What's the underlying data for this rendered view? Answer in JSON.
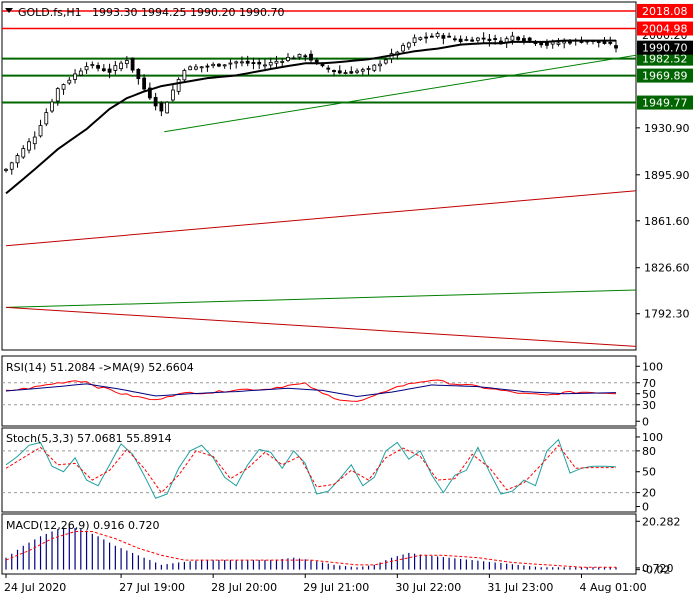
{
  "header": {
    "symbol": "GOLD.fs,H1",
    "ohlc": "1993.30 1994.25 1990.20 1990.70",
    "menu_icon": "triangle-down-icon"
  },
  "colors": {
    "up": "#00aa00",
    "down": "#cc0000",
    "ma": "#000000",
    "level_red": "#ff0000",
    "level_green": "#006600",
    "trend_green": "#008000",
    "trend_red": "#c00000",
    "label_red": "#ff0000",
    "label_green": "#006400",
    "label_black": "#000000",
    "osc_main": "#000080",
    "osc_signal": "#ff0000",
    "macd_hist": "#000080"
  },
  "chart_data": [
    {
      "type": "candlestick",
      "title": "GOLD.fs,H1",
      "ylim": [
        1766.0,
        2024.0
      ],
      "price_ticks": [
        "1930.90",
        "1895.90",
        "1861.60",
        "1826.60",
        "1792.30"
      ],
      "price_tick_values": [
        1930.9,
        1895.9,
        1861.6,
        1826.6,
        1792.3
      ],
      "current_price": "1990.70",
      "current_price_value": 1990.7,
      "hidden_tick": "2000.20",
      "hidden_tick_value": 2000.2,
      "levels": [
        {
          "value": 2018.08,
          "label": "2018.08",
          "kind": "red"
        },
        {
          "value": 2004.98,
          "label": "2004.98",
          "kind": "red"
        },
        {
          "value": 1982.52,
          "label": "1982.52",
          "kind": "green"
        },
        {
          "value": 1969.89,
          "label": "1969.89",
          "kind": "green"
        },
        {
          "value": 1949.77,
          "label": "1949.77",
          "kind": "green"
        }
      ],
      "trendlines": [
        {
          "kind": "green",
          "x0": 27.5,
          "y0": 1928.0,
          "x1": 107.0,
          "y1": 1985.0
        },
        {
          "kind": "red",
          "x0": 0.0,
          "y0": 1843.0,
          "x1": 107.0,
          "y1": 1884.0
        },
        {
          "kind": "green",
          "x0": 0.0,
          "y0": 1797.0,
          "x1": 107.0,
          "y1": 1810.0
        },
        {
          "kind": "red",
          "x0": 0.0,
          "y0": 1797.0,
          "x1": 107.0,
          "y1": 1768.0
        }
      ],
      "close_anchors": [
        [
          0,
          1900
        ],
        [
          5,
          1925
        ],
        [
          9,
          1960
        ],
        [
          14,
          1978
        ],
        [
          18,
          1973
        ],
        [
          21,
          1982
        ],
        [
          24,
          1960
        ],
        [
          27,
          1943
        ],
        [
          31,
          1975
        ],
        [
          35,
          1977
        ],
        [
          40,
          1980
        ],
        [
          45,
          1978
        ],
        [
          49,
          1983
        ],
        [
          52,
          1985
        ],
        [
          55,
          1976
        ],
        [
          58,
          1972
        ],
        [
          63,
          1974
        ],
        [
          67,
          1985
        ],
        [
          71,
          1997
        ],
        [
          75,
          2000
        ],
        [
          79,
          1996
        ],
        [
          83,
          1998
        ],
        [
          86,
          1995
        ],
        [
          88,
          1999
        ],
        [
          91,
          1996
        ],
        [
          94,
          1993
        ],
        [
          97,
          1995
        ],
        [
          101,
          1996
        ],
        [
          104,
          1994
        ],
        [
          106,
          1991
        ]
      ],
      "ma_anchors": [
        [
          0,
          1882
        ],
        [
          5,
          1900
        ],
        [
          9,
          1915
        ],
        [
          14,
          1930
        ],
        [
          18,
          1945
        ],
        [
          21,
          1953
        ],
        [
          24,
          1958
        ],
        [
          27,
          1962
        ],
        [
          31,
          1965
        ],
        [
          35,
          1968
        ],
        [
          40,
          1970
        ],
        [
          45,
          1974
        ],
        [
          49,
          1977
        ],
        [
          52,
          1979
        ],
        [
          55,
          1979
        ],
        [
          58,
          1980
        ],
        [
          63,
          1982
        ],
        [
          67,
          1985
        ],
        [
          71,
          1988
        ],
        [
          75,
          1990
        ],
        [
          79,
          1993
        ],
        [
          83,
          1994
        ],
        [
          86,
          1994
        ],
        [
          88,
          1995
        ],
        [
          91,
          1995
        ],
        [
          94,
          1995
        ],
        [
          97,
          1996
        ],
        [
          101,
          1996
        ],
        [
          104,
          1996
        ],
        [
          106,
          1996
        ]
      ],
      "x_labels": [
        "24 Jul 2020",
        "27 Jul 19:00",
        "28 Jul 20:00",
        "29 Jul 21:00",
        "30 Jul 22:00",
        "31 Jul 23:00",
        "4 Aug 01:00"
      ],
      "x_label_index": [
        0,
        20,
        36,
        52,
        68,
        84,
        100
      ]
    },
    {
      "type": "line",
      "title": "RSI(14) 51.2084  ->MA(9) 52.6604",
      "ylim": [
        -5,
        115
      ],
      "ticks": [
        "100",
        "70",
        "50",
        "30",
        "0"
      ],
      "tick_values": [
        100,
        70,
        50,
        30,
        0
      ],
      "dashed_levels": [
        70,
        30
      ],
      "main_anchors": [
        [
          0,
          55
        ],
        [
          4,
          60
        ],
        [
          8,
          68
        ],
        [
          12,
          74
        ],
        [
          14,
          72
        ],
        [
          16,
          62
        ],
        [
          18,
          58
        ],
        [
          20,
          50
        ],
        [
          24,
          42
        ],
        [
          26,
          38
        ],
        [
          28,
          46
        ],
        [
          32,
          52
        ],
        [
          36,
          52
        ],
        [
          40,
          58
        ],
        [
          45,
          58
        ],
        [
          49,
          65
        ],
        [
          52,
          68
        ],
        [
          55,
          50
        ],
        [
          58,
          40
        ],
        [
          61,
          35
        ],
        [
          64,
          45
        ],
        [
          67,
          60
        ],
        [
          71,
          70
        ],
        [
          74,
          75
        ],
        [
          78,
          68
        ],
        [
          82,
          63
        ],
        [
          86,
          56
        ],
        [
          90,
          50
        ],
        [
          94,
          47
        ],
        [
          97,
          52
        ],
        [
          101,
          53
        ],
        [
          106,
          51
        ]
      ],
      "signal_anchors": [
        [
          0,
          55
        ],
        [
          8,
          62
        ],
        [
          14,
          68
        ],
        [
          20,
          58
        ],
        [
          26,
          46
        ],
        [
          32,
          50
        ],
        [
          40,
          54
        ],
        [
          49,
          60
        ],
        [
          55,
          56
        ],
        [
          61,
          45
        ],
        [
          67,
          53
        ],
        [
          74,
          66
        ],
        [
          82,
          63
        ],
        [
          90,
          54
        ],
        [
          97,
          50
        ],
        [
          106,
          52
        ]
      ]
    },
    {
      "type": "line",
      "title": "Stoch(5,3,3) 57.0681 55.8914",
      "ylim": [
        -5,
        110
      ],
      "ticks": [
        "100",
        "80",
        "50",
        "20",
        "0"
      ],
      "tick_values": [
        100,
        80,
        50,
        20,
        0
      ],
      "dashed_levels": [
        80,
        20
      ],
      "main_anchors": [
        [
          0,
          60
        ],
        [
          2,
          72
        ],
        [
          4,
          88
        ],
        [
          6,
          92
        ],
        [
          8,
          58
        ],
        [
          10,
          50
        ],
        [
          12,
          70
        ],
        [
          14,
          38
        ],
        [
          16,
          30
        ],
        [
          18,
          60
        ],
        [
          20,
          90
        ],
        [
          22,
          75
        ],
        [
          24,
          45
        ],
        [
          26,
          12
        ],
        [
          28,
          18
        ],
        [
          30,
          55
        ],
        [
          32,
          80
        ],
        [
          34,
          88
        ],
        [
          36,
          70
        ],
        [
          38,
          42
        ],
        [
          40,
          30
        ],
        [
          42,
          60
        ],
        [
          44,
          82
        ],
        [
          46,
          78
        ],
        [
          48,
          55
        ],
        [
          50,
          80
        ],
        [
          52,
          62
        ],
        [
          54,
          18
        ],
        [
          56,
          22
        ],
        [
          58,
          40
        ],
        [
          60,
          60
        ],
        [
          62,
          30
        ],
        [
          64,
          42
        ],
        [
          66,
          80
        ],
        [
          68,
          92
        ],
        [
          70,
          68
        ],
        [
          72,
          80
        ],
        [
          74,
          45
        ],
        [
          76,
          20
        ],
        [
          78,
          45
        ],
        [
          80,
          52
        ],
        [
          82,
          85
        ],
        [
          84,
          50
        ],
        [
          86,
          18
        ],
        [
          88,
          22
        ],
        [
          90,
          38
        ],
        [
          92,
          30
        ],
        [
          94,
          80
        ],
        [
          96,
          96
        ],
        [
          98,
          48
        ],
        [
          100,
          55
        ],
        [
          102,
          58
        ],
        [
          104,
          58
        ],
        [
          106,
          57
        ]
      ],
      "signal_anchors": [
        [
          0,
          55
        ],
        [
          3,
          70
        ],
        [
          6,
          85
        ],
        [
          9,
          60
        ],
        [
          12,
          62
        ],
        [
          15,
          38
        ],
        [
          18,
          52
        ],
        [
          21,
          82
        ],
        [
          24,
          55
        ],
        [
          27,
          20
        ],
        [
          30,
          45
        ],
        [
          33,
          80
        ],
        [
          36,
          72
        ],
        [
          39,
          40
        ],
        [
          42,
          55
        ],
        [
          45,
          78
        ],
        [
          48,
          60
        ],
        [
          51,
          72
        ],
        [
          54,
          28
        ],
        [
          57,
          32
        ],
        [
          60,
          52
        ],
        [
          63,
          38
        ],
        [
          66,
          70
        ],
        [
          69,
          84
        ],
        [
          72,
          72
        ],
        [
          75,
          38
        ],
        [
          78,
          40
        ],
        [
          81,
          75
        ],
        [
          84,
          56
        ],
        [
          87,
          24
        ],
        [
          90,
          34
        ],
        [
          93,
          60
        ],
        [
          96,
          88
        ],
        [
          99,
          55
        ],
        [
          102,
          56
        ],
        [
          106,
          56
        ]
      ]
    },
    {
      "type": "bar",
      "title": "MACD(12,26,9) 0.916 0.720",
      "ylim": [
        -1.0,
        22.5
      ],
      "ticks": [
        "20.282",
        "0.720",
        "-0.02"
      ],
      "tick_values": [
        20.282,
        0.72,
        -0.02
      ],
      "hist_anchors": [
        [
          0,
          5
        ],
        [
          3,
          10
        ],
        [
          6,
          14
        ],
        [
          9,
          17
        ],
        [
          11,
          18
        ],
        [
          13,
          17
        ],
        [
          16,
          14
        ],
        [
          19,
          10
        ],
        [
          22,
          7
        ],
        [
          25,
          4
        ],
        [
          27,
          2
        ],
        [
          30,
          3
        ],
        [
          34,
          4
        ],
        [
          40,
          4
        ],
        [
          46,
          4
        ],
        [
          50,
          5
        ],
        [
          53,
          4
        ],
        [
          57,
          2
        ],
        [
          61,
          1
        ],
        [
          64,
          2
        ],
        [
          67,
          5
        ],
        [
          70,
          7
        ],
        [
          73,
          6
        ],
        [
          77,
          5
        ],
        [
          81,
          4
        ],
        [
          85,
          3
        ],
        [
          89,
          2
        ],
        [
          93,
          1
        ],
        [
          97,
          1
        ],
        [
          101,
          1
        ],
        [
          106,
          1
        ]
      ],
      "signal_anchors": [
        [
          0,
          4
        ],
        [
          4,
          8
        ],
        [
          8,
          13
        ],
        [
          12,
          16
        ],
        [
          15,
          16
        ],
        [
          19,
          13
        ],
        [
          23,
          9
        ],
        [
          27,
          6
        ],
        [
          31,
          4
        ],
        [
          35,
          4
        ],
        [
          42,
          4
        ],
        [
          48,
          4
        ],
        [
          53,
          4
        ],
        [
          57,
          3
        ],
        [
          61,
          2
        ],
        [
          64,
          2
        ],
        [
          68,
          4
        ],
        [
          72,
          6
        ],
        [
          76,
          6
        ],
        [
          82,
          5
        ],
        [
          88,
          3
        ],
        [
          94,
          2
        ],
        [
          100,
          1
        ],
        [
          106,
          1
        ]
      ]
    }
  ]
}
